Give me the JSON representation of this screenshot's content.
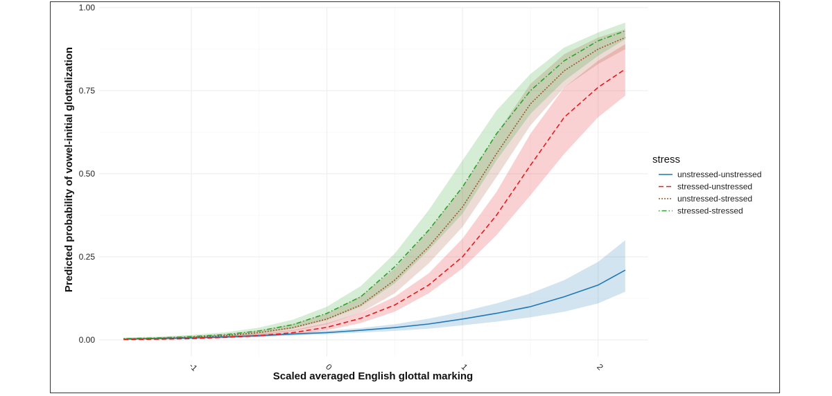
{
  "chart_data": {
    "type": "line",
    "title": "",
    "xlabel": "Scaled averaged English glottal marking",
    "ylabel": "Predicted probability of vowel-initial glottalization",
    "xlim": [
      -1.68,
      2.37
    ],
    "ylim": [
      -0.05,
      1.0
    ],
    "x_ticks": [
      -1,
      0,
      1,
      2
    ],
    "x_tick_labels": [
      "-1",
      "0",
      "1",
      "2"
    ],
    "y_ticks": [
      0,
      0.25,
      0.5,
      0.75,
      1.0
    ],
    "y_tick_labels": [
      "0.00",
      "0.25",
      "0.50",
      "0.75",
      "1.00"
    ],
    "grid": true,
    "ribbons": true,
    "legend": {
      "title": "stress",
      "position": "right"
    },
    "x": [
      -1.5,
      -1.25,
      -1.0,
      -0.75,
      -0.5,
      -0.25,
      0.0,
      0.25,
      0.5,
      0.75,
      1.0,
      1.25,
      1.5,
      1.75,
      2.0,
      2.2
    ],
    "series": [
      {
        "name": "unstressed-unstressed",
        "color": "#1f77b4",
        "dash": "solid",
        "values": [
          0.002,
          0.004,
          0.006,
          0.009,
          0.013,
          0.018,
          0.022,
          0.029,
          0.037,
          0.048,
          0.063,
          0.08,
          0.1,
          0.13,
          0.165,
          0.21
        ],
        "lower": [
          0.001,
          0.002,
          0.004,
          0.006,
          0.009,
          0.013,
          0.017,
          0.022,
          0.027,
          0.034,
          0.044,
          0.055,
          0.068,
          0.085,
          0.11,
          0.145
        ],
        "upper": [
          0.004,
          0.006,
          0.009,
          0.013,
          0.017,
          0.022,
          0.028,
          0.036,
          0.047,
          0.064,
          0.085,
          0.11,
          0.14,
          0.18,
          0.235,
          0.3
        ]
      },
      {
        "name": "stressed-unstressed",
        "color": "#e41a1c",
        "dash": "dashed",
        "values": [
          0.001,
          0.002,
          0.004,
          0.008,
          0.013,
          0.022,
          0.038,
          0.065,
          0.105,
          0.165,
          0.25,
          0.375,
          0.525,
          0.67,
          0.76,
          0.815
        ],
        "lower": [
          0.0,
          0.001,
          0.002,
          0.005,
          0.009,
          0.016,
          0.029,
          0.051,
          0.085,
          0.14,
          0.215,
          0.315,
          0.435,
          0.56,
          0.67,
          0.735
        ],
        "upper": [
          0.002,
          0.004,
          0.007,
          0.012,
          0.019,
          0.03,
          0.05,
          0.082,
          0.13,
          0.2,
          0.305,
          0.445,
          0.62,
          0.76,
          0.84,
          0.89
        ]
      },
      {
        "name": "unstressed-stressed",
        "color": "#a0522d",
        "dash": "dotted",
        "values": [
          0.003,
          0.005,
          0.008,
          0.013,
          0.022,
          0.037,
          0.063,
          0.105,
          0.18,
          0.28,
          0.4,
          0.56,
          0.71,
          0.81,
          0.875,
          0.91
        ],
        "lower": [
          0.001,
          0.003,
          0.005,
          0.009,
          0.015,
          0.027,
          0.047,
          0.082,
          0.14,
          0.23,
          0.34,
          0.49,
          0.645,
          0.76,
          0.83,
          0.875
        ],
        "upper": [
          0.005,
          0.008,
          0.012,
          0.018,
          0.029,
          0.048,
          0.08,
          0.132,
          0.215,
          0.33,
          0.46,
          0.62,
          0.77,
          0.86,
          0.91,
          0.935
        ]
      },
      {
        "name": "stressed-stressed",
        "color": "#2ca02c",
        "dash": "dotdash",
        "values": [
          0.004,
          0.006,
          0.01,
          0.016,
          0.027,
          0.046,
          0.08,
          0.13,
          0.22,
          0.33,
          0.46,
          0.62,
          0.75,
          0.84,
          0.9,
          0.93
        ],
        "lower": [
          0.002,
          0.004,
          0.007,
          0.011,
          0.019,
          0.034,
          0.06,
          0.1,
          0.17,
          0.27,
          0.38,
          0.54,
          0.68,
          0.78,
          0.855,
          0.905
        ],
        "upper": [
          0.007,
          0.01,
          0.015,
          0.023,
          0.037,
          0.061,
          0.1,
          0.162,
          0.26,
          0.39,
          0.54,
          0.69,
          0.8,
          0.88,
          0.925,
          0.955
        ]
      }
    ]
  }
}
